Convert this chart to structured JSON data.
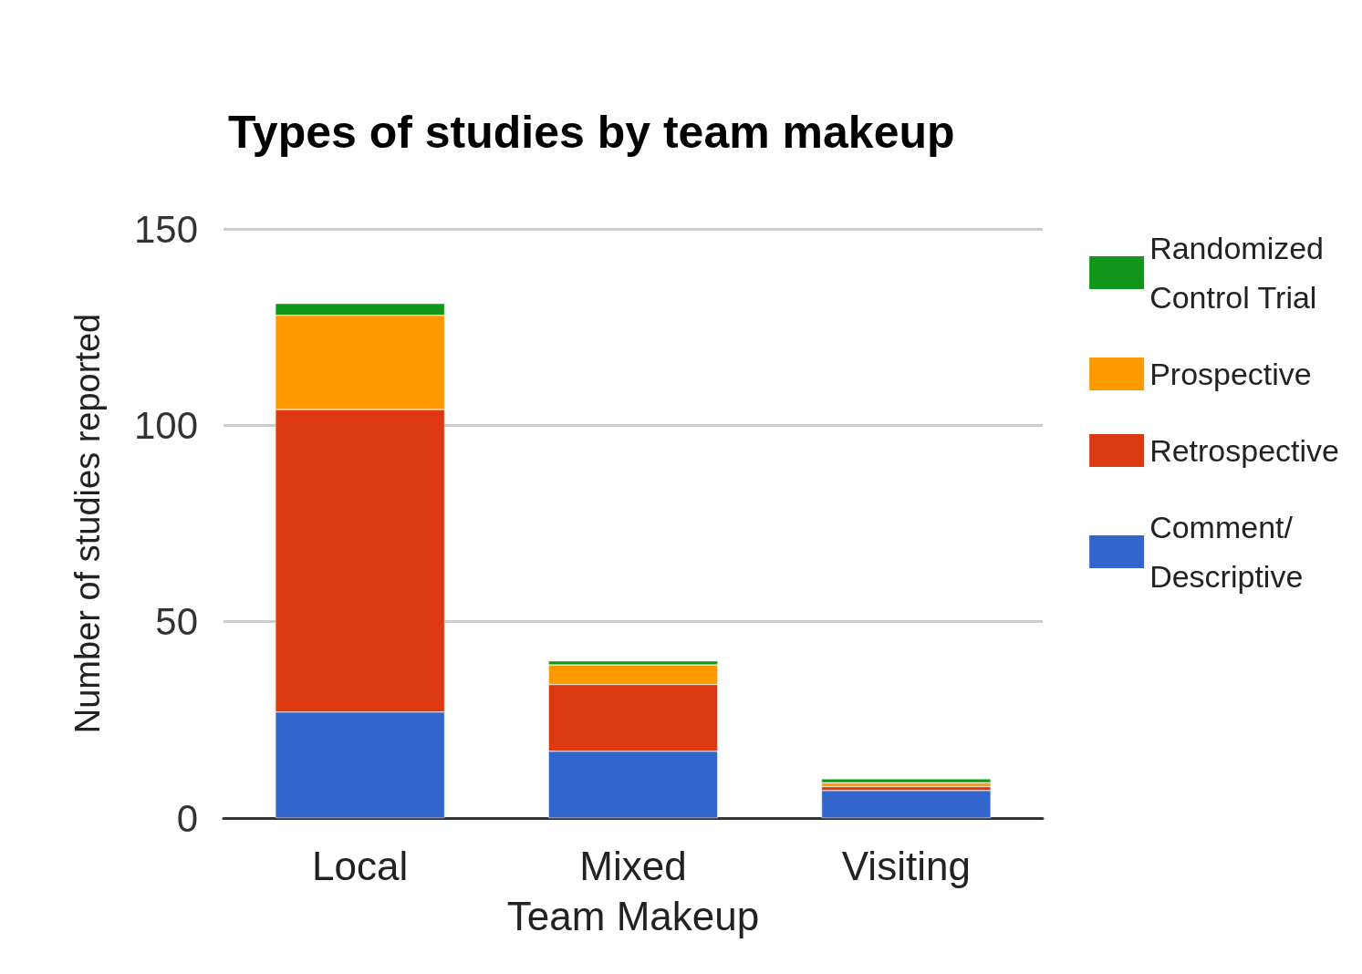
{
  "chart_data": {
    "type": "bar",
    "title": "Types of studies by team makeup",
    "xlabel": "Team Makeup",
    "ylabel": "Number of studies reported",
    "categories": [
      "Local",
      "Mixed",
      "Visiting"
    ],
    "stacked": true,
    "series": [
      {
        "name": "Comment/ Descriptive",
        "color": "#3366cc",
        "values": [
          27,
          17,
          7
        ]
      },
      {
        "name": "Retrospective",
        "color": "#dc3912",
        "values": [
          77,
          17,
          1
        ]
      },
      {
        "name": "Prospective",
        "color": "#ff9900",
        "values": [
          24,
          5,
          1
        ]
      },
      {
        "name": "Randomized Control Trial",
        "color": "#109618",
        "values": [
          3,
          1,
          1
        ]
      }
    ],
    "ylim": [
      0,
      150
    ],
    "yticks": [
      0,
      50,
      100,
      150
    ],
    "grid": "y",
    "legend": "right"
  }
}
